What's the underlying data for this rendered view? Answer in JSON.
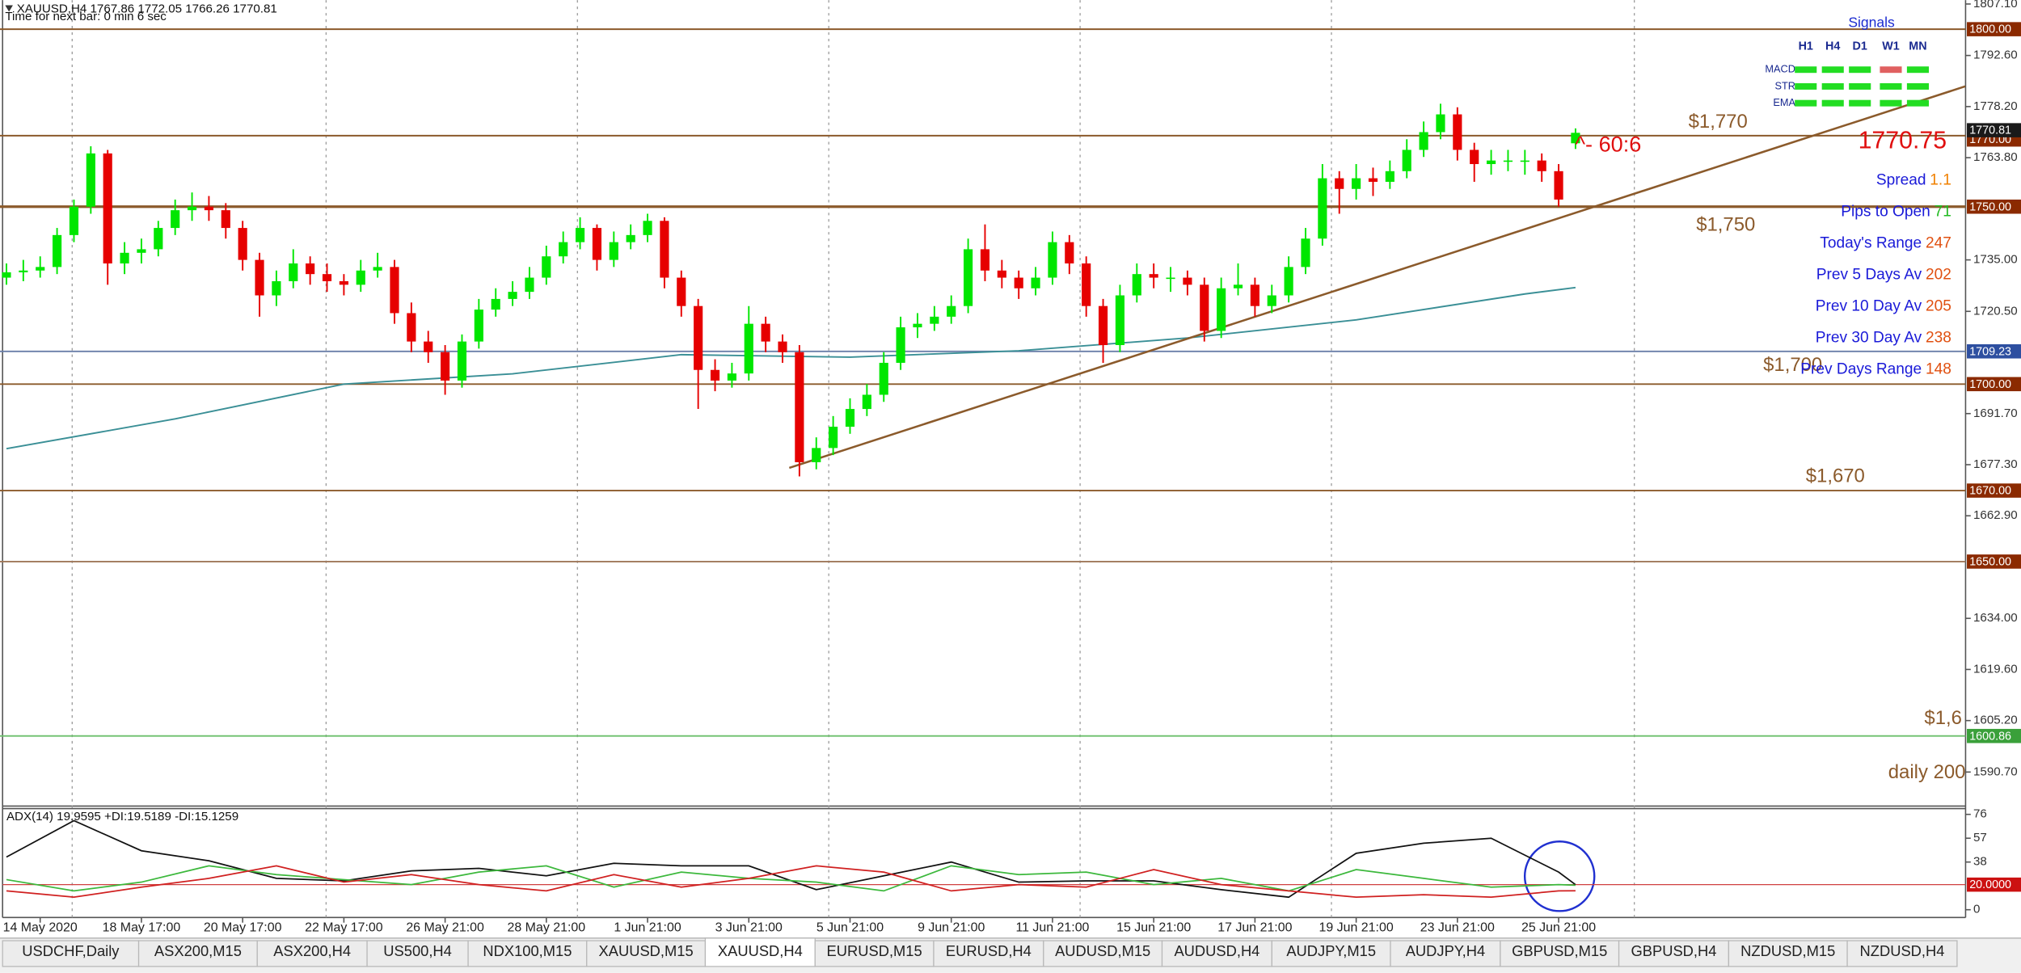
{
  "header": {
    "symbol_line": "XAUUSD,H4  1767.86 1772.05 1766.26 1770.81",
    "timer": "Time for next bar: 0 min 6 sec"
  },
  "chart_data": [
    {
      "type": "candlestick",
      "up_color": "#00e600",
      "down_color": "#e60000",
      "ohlc": [
        [
          1730,
          1734,
          1728,
          1731.5
        ],
        [
          1731.5,
          1735,
          1729,
          1732
        ],
        [
          1732,
          1736,
          1730,
          1733
        ],
        [
          1733,
          1744,
          1731,
          1742
        ],
        [
          1742,
          1752,
          1740,
          1750
        ],
        [
          1750,
          1767,
          1748,
          1765
        ],
        [
          1765,
          1766,
          1728,
          1734
        ],
        [
          1734,
          1740,
          1731,
          1737
        ],
        [
          1737,
          1741,
          1734,
          1738
        ],
        [
          1738,
          1746,
          1736,
          1744
        ],
        [
          1744,
          1752,
          1742,
          1749
        ],
        [
          1749,
          1754,
          1746,
          1750
        ],
        [
          1750,
          1753,
          1746,
          1749
        ],
        [
          1749,
          1751,
          1741,
          1744
        ],
        [
          1744,
          1746,
          1732,
          1735
        ],
        [
          1735,
          1737,
          1719,
          1725
        ],
        [
          1725,
          1732,
          1722,
          1729
        ],
        [
          1729,
          1738,
          1727,
          1734
        ],
        [
          1734,
          1736,
          1728,
          1731
        ],
        [
          1731,
          1734,
          1726,
          1729
        ],
        [
          1729,
          1731,
          1725,
          1728
        ],
        [
          1728,
          1735,
          1726,
          1732
        ],
        [
          1732,
          1737,
          1730,
          1733
        ],
        [
          1733,
          1735,
          1717,
          1720
        ],
        [
          1720,
          1723,
          1709,
          1712
        ],
        [
          1712,
          1715,
          1706,
          1709
        ],
        [
          1709,
          1711,
          1697,
          1701
        ],
        [
          1701,
          1714,
          1699,
          1712
        ],
        [
          1712,
          1724,
          1710,
          1721
        ],
        [
          1721,
          1727,
          1719,
          1724
        ],
        [
          1724,
          1729,
          1722,
          1726
        ],
        [
          1726,
          1733,
          1724,
          1730
        ],
        [
          1730,
          1739,
          1728,
          1736
        ],
        [
          1736,
          1743,
          1734,
          1740
        ],
        [
          1740,
          1747,
          1738,
          1744
        ],
        [
          1744,
          1745,
          1732,
          1735
        ],
        [
          1735,
          1743,
          1733,
          1740
        ],
        [
          1740,
          1745,
          1738,
          1742
        ],
        [
          1742,
          1748,
          1740,
          1746
        ],
        [
          1746,
          1747,
          1727,
          1730
        ],
        [
          1730,
          1732,
          1719,
          1722
        ],
        [
          1722,
          1724,
          1693,
          1704
        ],
        [
          1704,
          1707,
          1698,
          1701
        ],
        [
          1701,
          1706,
          1699,
          1703
        ],
        [
          1703,
          1722,
          1701,
          1717
        ],
        [
          1717,
          1719,
          1709,
          1712
        ],
        [
          1712,
          1714,
          1706,
          1709
        ],
        [
          1709,
          1711,
          1674,
          1678
        ],
        [
          1678,
          1685,
          1676,
          1682
        ],
        [
          1682,
          1691,
          1680,
          1688
        ],
        [
          1688,
          1696,
          1686,
          1693
        ],
        [
          1693,
          1700,
          1691,
          1697
        ],
        [
          1697,
          1709,
          1695,
          1706
        ],
        [
          1706,
          1719,
          1704,
          1716
        ],
        [
          1716,
          1720,
          1713,
          1717
        ],
        [
          1717,
          1722,
          1715,
          1719
        ],
        [
          1719,
          1725,
          1717,
          1722
        ],
        [
          1722,
          1741,
          1720,
          1738
        ],
        [
          1738,
          1745,
          1729,
          1732
        ],
        [
          1732,
          1735,
          1727,
          1730
        ],
        [
          1730,
          1732,
          1724,
          1727
        ],
        [
          1727,
          1733,
          1725,
          1730
        ],
        [
          1730,
          1743,
          1728,
          1740
        ],
        [
          1740,
          1742,
          1731,
          1734
        ],
        [
          1734,
          1736,
          1719,
          1722
        ],
        [
          1722,
          1724,
          1706,
          1711
        ],
        [
          1711,
          1728,
          1709,
          1725
        ],
        [
          1725,
          1734,
          1723,
          1731
        ],
        [
          1731,
          1734,
          1727,
          1730
        ],
        [
          1730,
          1733,
          1726,
          1730
        ],
        [
          1730,
          1732,
          1725,
          1728
        ],
        [
          1728,
          1730,
          1712,
          1715
        ],
        [
          1715,
          1730,
          1713,
          1727
        ],
        [
          1727,
          1734,
          1725,
          1728
        ],
        [
          1728,
          1730,
          1719,
          1722
        ],
        [
          1722,
          1728,
          1720,
          1725
        ],
        [
          1725,
          1736,
          1723,
          1733
        ],
        [
          1733,
          1744,
          1731,
          1741
        ],
        [
          1741,
          1762,
          1739,
          1758
        ],
        [
          1758,
          1760,
          1748,
          1755
        ],
        [
          1755,
          1762,
          1752,
          1758
        ],
        [
          1758,
          1761,
          1753,
          1757
        ],
        [
          1757,
          1763,
          1755,
          1760
        ],
        [
          1760,
          1769,
          1758,
          1766
        ],
        [
          1766,
          1774,
          1764,
          1771
        ],
        [
          1771,
          1779,
          1769,
          1776
        ],
        [
          1776,
          1778,
          1763,
          1766
        ],
        [
          1766,
          1768,
          1757,
          1762
        ],
        [
          1762,
          1766,
          1759,
          1763
        ],
        [
          1763,
          1766,
          1760,
          1763
        ],
        [
          1763,
          1766,
          1759,
          1763
        ],
        [
          1763,
          1765,
          1757,
          1760
        ],
        [
          1760,
          1762,
          1750,
          1752
        ],
        [
          1767.86,
          1772.05,
          1766.26,
          1770.81
        ]
      ],
      "ema": {
        "color": "#3a8f96",
        "x": [
          0,
          10,
          20,
          30,
          40,
          50,
          60,
          70,
          80,
          90,
          93
        ],
        "values": [
          1681.8,
          1690.2,
          1700,
          1702.9,
          1708.3,
          1707.6,
          1709.4,
          1713,
          1718.1,
          1725.4,
          1727.2
        ]
      },
      "trendline": {
        "color": "#8b5a2b",
        "x": [
          46.4,
          116.1
        ],
        "values": [
          1676.4,
          1783.9
        ]
      },
      "ylim": [
        1581.3,
        1808.2
      ],
      "yticks": [
        {
          "value": 1807.1,
          "label": "1807.10"
        },
        {
          "value": 1792.6,
          "label": "1792.60"
        },
        {
          "value": 1778.2,
          "label": "1778.20"
        },
        {
          "value": 1763.8,
          "label": "1763.80"
        },
        {
          "value": 1735,
          "label": "1735.00"
        },
        {
          "value": 1720.5,
          "label": "1720.50"
        },
        {
          "value": 1691.7,
          "label": "1691.70"
        },
        {
          "value": 1677.3,
          "label": "1677.30"
        },
        {
          "value": 1662.9,
          "label": "1662.90"
        },
        {
          "value": 1634,
          "label": "1634.00"
        },
        {
          "value": 1619.6,
          "label": "1619.60"
        },
        {
          "value": 1605.2,
          "label": "1605.20"
        },
        {
          "value": 1590.7,
          "label": "1590.70"
        }
      ],
      "xticks": [
        {
          "value": 2,
          "label": "14 May 2020"
        },
        {
          "value": 8,
          "label": "18 May 17:00"
        },
        {
          "value": 14,
          "label": "20 May 17:00"
        },
        {
          "value": 20,
          "label": "22 May 17:00"
        },
        {
          "value": 26,
          "label": "26 May 21:00"
        },
        {
          "value": 32,
          "label": "28 May 21:00"
        },
        {
          "value": 38,
          "label": "1 Jun 21:00"
        },
        {
          "value": 44,
          "label": "3 Jun 21:00"
        },
        {
          "value": 50,
          "label": "5 Jun 21:00"
        },
        {
          "value": 56,
          "label": "9 Jun 21:00"
        },
        {
          "value": 62,
          "label": "11 Jun 21:00"
        },
        {
          "value": 68,
          "label": "15 Jun 21:00"
        },
        {
          "value": 74,
          "label": "17 Jun 21:00"
        },
        {
          "value": 80,
          "label": "19 Jun 21:00"
        },
        {
          "value": 86,
          "label": "23 Jun 21:00"
        },
        {
          "value": 92,
          "label": "25 Jun 21:00"
        }
      ],
      "levels": [
        {
          "value": 1800,
          "label": "1800.00",
          "color": "#8b5a2b",
          "tag_color": "#8b2a00"
        },
        {
          "value": 1770,
          "label": "1770.00",
          "color": "#8b5a2b",
          "tag_color": "#8b2a00"
        },
        {
          "value": 1750,
          "label": "1750.00",
          "color": "#8b5a2b",
          "tag_color": "#8b2a00"
        },
        {
          "value": 1709.23,
          "label": "1709.23",
          "color": "#6a7fa8",
          "tag_color": "#2d4fa0"
        },
        {
          "value": 1700,
          "label": "1700.00",
          "color": "#8b5a2b",
          "tag_color": "#8b2a00"
        },
        {
          "value": 1670,
          "label": "1670.00",
          "color": "#8b5a2b",
          "tag_color": "#8b2a00"
        },
        {
          "value": 1650,
          "label": "1650.00",
          "color": "#a0785a",
          "tag_color": "#8b2a00"
        },
        {
          "value": 1600.86,
          "label": "1600.86",
          "color": "#6cbf6c",
          "tag_color": "#3aa03a"
        }
      ],
      "current_price": {
        "value": 1770.81,
        "label": "1770.81",
        "tag_color": "#1a1a1a"
      },
      "annotations": [
        "$1,770",
        "$1,750",
        "$1,700",
        "$1,670",
        "$1,6",
        "daily 200"
      ]
    },
    {
      "type": "line",
      "title": "ADX(14) 19.9595 +DI:19.5189 -DI:15.1259",
      "x": [
        0,
        4,
        8,
        12,
        16,
        20,
        24,
        28,
        32,
        36,
        40,
        44,
        48,
        52,
        56,
        60,
        64,
        68,
        72,
        76,
        80,
        84,
        88,
        92,
        93
      ],
      "series": [
        {
          "color": "#111111",
          "values": [
            42,
            71,
            47,
            39,
            25,
            23,
            31,
            33,
            27,
            37,
            35,
            35,
            16,
            27,
            38,
            22,
            23,
            23,
            16,
            10,
            45,
            53,
            57,
            30,
            20
          ]
        },
        {
          "color": "#3cb83c",
          "values": [
            24,
            15,
            22,
            35,
            28,
            24,
            20,
            30,
            35,
            18,
            30,
            25,
            22,
            15,
            35,
            28,
            30,
            20,
            25,
            15,
            32,
            25,
            18,
            20,
            19.5
          ]
        },
        {
          "color": "#d02020",
          "values": [
            15,
            10,
            18,
            25,
            35,
            22,
            28,
            20,
            15,
            28,
            18,
            25,
            35,
            30,
            15,
            20,
            18,
            32,
            20,
            15,
            10,
            12,
            10,
            15,
            15.1
          ]
        }
      ],
      "ylim": [
        -6.2,
        81.1
      ],
      "yticks": [
        76,
        57,
        38,
        0
      ],
      "levels": [
        {
          "value": 20,
          "label": "20.0000",
          "color": "#d04040",
          "tag_color": "#cc1111"
        }
      ]
    }
  ],
  "signals": {
    "title": "Signals",
    "columns": [
      "H1",
      "H4",
      "D1",
      "W1",
      "MN"
    ],
    "rows": [
      {
        "name": "MACD",
        "colors": [
          "#22dd22",
          "#22dd22",
          "#22dd22",
          "#e06060",
          "#22dd22"
        ]
      },
      {
        "name": "STR",
        "colors": [
          "#22dd22",
          "#22dd22",
          "#22dd22",
          "#22dd22",
          "#22dd22"
        ]
      },
      {
        "name": "EMA",
        "colors": [
          "#22dd22",
          "#22dd22",
          "#22dd22",
          "#22dd22",
          "#22dd22"
        ]
      }
    ]
  },
  "big_price": "1770.75",
  "countdown": "^- 60:6",
  "stats": [
    {
      "label": "Spread",
      "value": "1.1",
      "value_color": "#f08000"
    },
    {
      "label": "Pips to Open",
      "value": "71",
      "value_color": "#22bb22"
    },
    {
      "label": "Today's Range",
      "value": "247",
      "value_color": "#e05010"
    },
    {
      "label": "Prev 5 Days Av",
      "value": "202",
      "value_color": "#e05010"
    },
    {
      "label": "Prev 10 Day Av",
      "value": "205",
      "value_color": "#e05010"
    },
    {
      "label": "Prev 30 Day Av",
      "value": "238",
      "value_color": "#e05010"
    },
    {
      "label": "Prev Days Range",
      "value": "148",
      "value_color": "#e05010"
    }
  ],
  "tabs": [
    "USDCHF,Daily",
    "ASX200,M15",
    "ASX200,H4",
    "US500,H4",
    "NDX100,M15",
    "XAUUSD,M15",
    "XAUUSD,H4",
    "EURUSD,M15",
    "EURUSD,H4",
    "AUDUSD,M15",
    "AUDUSD,H4",
    "AUDJPY,M15",
    "AUDJPY,H4",
    "GBPUSD,M15",
    "GBPUSD,H4",
    "NZDUSD,M15",
    "NZDUSD,H4"
  ],
  "active_tab": 6
}
